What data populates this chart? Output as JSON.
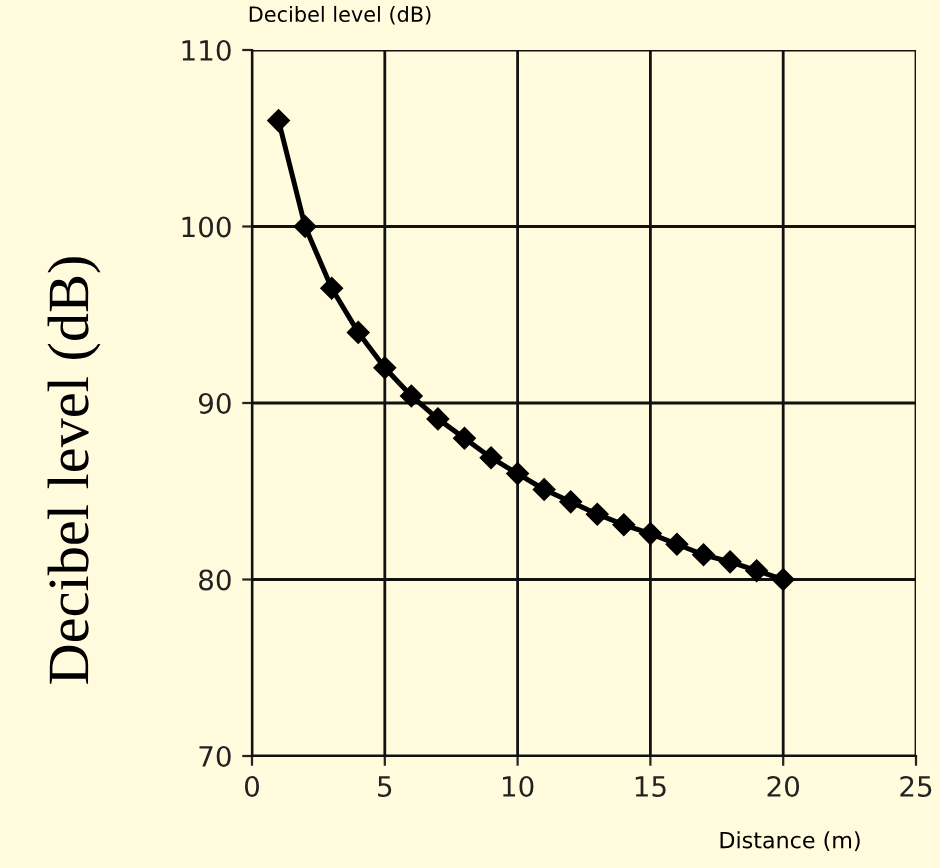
{
  "chart_data": {
    "type": "line",
    "title": "Decibel level (dB)",
    "ylabel": "Decibel level (dB)",
    "xlabel": "Distance (m)",
    "x": [
      1,
      2,
      3,
      4,
      5,
      6,
      7,
      8,
      9,
      10,
      11,
      12,
      13,
      14,
      15,
      16,
      17,
      18,
      19,
      20
    ],
    "series": [
      {
        "color": "#000000",
        "values": [
          106,
          100,
          96.5,
          94,
          92,
          90.4,
          89.1,
          88,
          86.9,
          86,
          85.1,
          84.4,
          83.7,
          83.1,
          82.6,
          82,
          81.4,
          81,
          80.5,
          80
        ]
      }
    ],
    "xlim": [
      0,
      25
    ],
    "xticks": [
      0,
      5,
      10,
      15,
      20,
      25
    ],
    "ylim": [
      70,
      110
    ],
    "yticks": [
      70,
      80,
      90,
      100,
      110
    ],
    "grid": true,
    "marker": "diamond",
    "line_style": "solid"
  }
}
